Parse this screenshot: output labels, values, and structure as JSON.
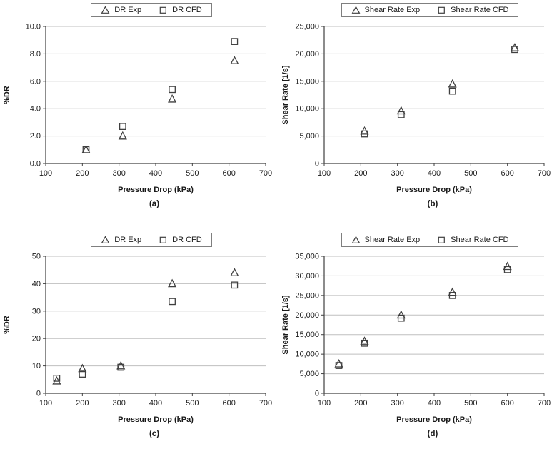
{
  "colors": {
    "grid": "#bfbfbf",
    "axis": "#404040",
    "marker": "#3f3f3f",
    "text": "#1a1a1a",
    "legend_border": "#7f7f7f"
  },
  "chart_data": [
    {
      "id": "a",
      "type": "scatter",
      "panel_label": "(a)",
      "xlabel": "Pressure Drop (kPa)",
      "ylabel": "%DR",
      "xlim": [
        100,
        700
      ],
      "ylim": [
        0,
        10
      ],
      "xticks": [
        100,
        200,
        300,
        400,
        500,
        600,
        700
      ],
      "yticks": [
        0,
        2,
        4,
        6,
        8,
        10
      ],
      "ytick_labels": [
        "0.0",
        "2.0",
        "4.0",
        "6.0",
        "8.0",
        "10.0"
      ],
      "grid": "horizontal",
      "legend_position": "top",
      "series": [
        {
          "name": "DR Exp",
          "marker": "triangle",
          "points": [
            [
              210,
              1.0
            ],
            [
              310,
              2.0
            ],
            [
              445,
              4.7
            ],
            [
              615,
              7.5
            ]
          ]
        },
        {
          "name": "DR CFD",
          "marker": "square",
          "points": [
            [
              210,
              1.0
            ],
            [
              310,
              2.7
            ],
            [
              445,
              5.4
            ],
            [
              615,
              8.9
            ]
          ]
        }
      ]
    },
    {
      "id": "b",
      "type": "scatter",
      "panel_label": "(b)",
      "xlabel": "Pressure Drop (kPa)",
      "ylabel": "Shear Rate [1/s]",
      "xlim": [
        100,
        700
      ],
      "ylim": [
        0,
        25000
      ],
      "xticks": [
        100,
        200,
        300,
        400,
        500,
        600,
        700
      ],
      "yticks": [
        0,
        5000,
        10000,
        15000,
        20000,
        25000
      ],
      "ytick_labels": [
        "0",
        "5,000",
        "10,000",
        "15,000",
        "20,000",
        "25,000"
      ],
      "grid": "horizontal",
      "legend_position": "top",
      "series": [
        {
          "name": "Shear Rate Exp",
          "marker": "triangle",
          "points": [
            [
              210,
              5900
            ],
            [
              310,
              9600
            ],
            [
              450,
              14500
            ],
            [
              620,
              21100
            ]
          ]
        },
        {
          "name": "Shear Rate CFD",
          "marker": "square",
          "points": [
            [
              210,
              5400
            ],
            [
              310,
              8900
            ],
            [
              450,
              13200
            ],
            [
              620,
              20800
            ]
          ]
        }
      ]
    },
    {
      "id": "c",
      "type": "scatter",
      "panel_label": "(c)",
      "xlabel": "Pressure Drop (kPa)",
      "ylabel": "%DR",
      "xlim": [
        100,
        700
      ],
      "ylim": [
        0,
        50
      ],
      "xticks": [
        100,
        200,
        300,
        400,
        500,
        600,
        700
      ],
      "yticks": [
        0,
        10,
        20,
        30,
        40,
        50
      ],
      "ytick_labels": [
        "0",
        "10",
        "20",
        "30",
        "40",
        "50"
      ],
      "grid": "horizontal",
      "legend_position": "top",
      "series": [
        {
          "name": "DR Exp",
          "marker": "triangle",
          "points": [
            [
              130,
              4.5
            ],
            [
              200,
              9.0
            ],
            [
              305,
              10.0
            ],
            [
              445,
              40.0
            ],
            [
              615,
              44.0
            ]
          ]
        },
        {
          "name": "DR CFD",
          "marker": "square",
          "points": [
            [
              130,
              5.5
            ],
            [
              200,
              7.0
            ],
            [
              305,
              9.5
            ],
            [
              445,
              33.5
            ],
            [
              615,
              39.5
            ]
          ]
        }
      ]
    },
    {
      "id": "d",
      "type": "scatter",
      "panel_label": "(d)",
      "xlabel": "Pressure Drop (kPa)",
      "ylabel": "Shear Rate [1/s]",
      "xlim": [
        100,
        700
      ],
      "ylim": [
        0,
        35000
      ],
      "xticks": [
        100,
        200,
        300,
        400,
        500,
        600,
        700
      ],
      "yticks": [
        0,
        5000,
        10000,
        15000,
        20000,
        25000,
        30000,
        35000
      ],
      "ytick_labels": [
        "0",
        "5,000",
        "10,000",
        "15,000",
        "20,000",
        "25,000",
        "30,000",
        "35,000"
      ],
      "grid": "horizontal",
      "legend_position": "top",
      "series": [
        {
          "name": "Shear Rate Exp",
          "marker": "triangle",
          "points": [
            [
              140,
              7500
            ],
            [
              210,
              13300
            ],
            [
              310,
              20000
            ],
            [
              450,
              25800
            ],
            [
              600,
              32400
            ]
          ]
        },
        {
          "name": "Shear Rate CFD",
          "marker": "square",
          "points": [
            [
              140,
              7100
            ],
            [
              210,
              12800
            ],
            [
              310,
              19200
            ],
            [
              450,
              25000
            ],
            [
              600,
              31600
            ]
          ]
        }
      ]
    }
  ]
}
